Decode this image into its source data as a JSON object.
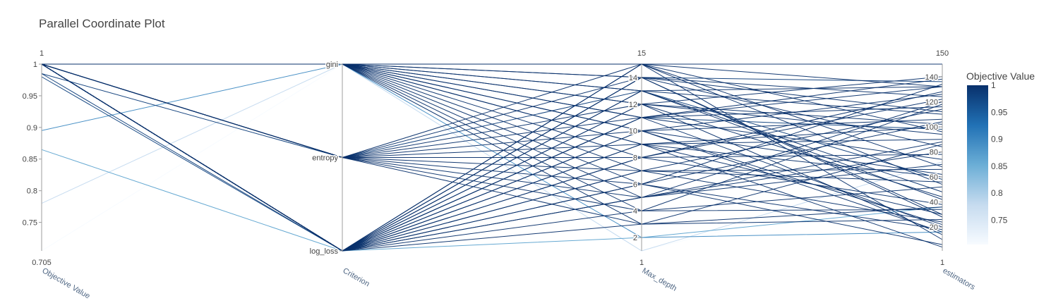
{
  "chart_data": {
    "type": "parallel_coordinates",
    "title": "Parallel Coordinate Plot",
    "color_scale": [
      "#f7fbff",
      "#c6dbef",
      "#6baed6",
      "#2171b5",
      "#08306b"
    ],
    "line_color_by": "Objective Value",
    "axes": [
      {
        "key": "objective",
        "label": "Objective Value",
        "range": [
          0.705,
          1
        ],
        "range_labels": [
          "0.705",
          "1"
        ],
        "ticks": [
          0.75,
          0.8,
          0.85,
          0.9,
          0.95,
          1
        ],
        "tick_labels": [
          "0.75",
          "0.8",
          "0.85",
          "0.9",
          "0.95",
          "1"
        ]
      },
      {
        "key": "criterion",
        "label": "Criterion",
        "categorical": true,
        "categories": [
          "log_loss",
          "entropy",
          "gini"
        ],
        "tick_labels": [
          "log_loss",
          "entropy",
          "gini"
        ]
      },
      {
        "key": "max_depth",
        "label": "Max_depth",
        "range": [
          1,
          15
        ],
        "range_labels": [
          "1",
          "15"
        ],
        "ticks": [
          2,
          4,
          6,
          8,
          10,
          12,
          14
        ],
        "tick_labels": [
          "2",
          "4",
          "6",
          "8",
          "10",
          "12",
          "14"
        ]
      },
      {
        "key": "estimators",
        "label": "estimators",
        "range": [
          1,
          150
        ],
        "range_labels": [
          "1",
          "150"
        ],
        "ticks": [
          20,
          40,
          60,
          80,
          100,
          120,
          140
        ],
        "tick_labels": [
          "20",
          "40",
          "60",
          "80",
          "100",
          "120",
          "140"
        ]
      }
    ],
    "trials": [
      [
        1,
        "gini",
        15,
        150
      ],
      [
        1,
        "gini",
        15,
        132
      ],
      [
        1,
        "gini",
        15,
        96
      ],
      [
        1,
        "gini",
        14,
        112
      ],
      [
        1,
        "gini",
        14,
        124
      ],
      [
        1,
        "gini",
        13,
        42
      ],
      [
        1,
        "gini",
        13,
        132
      ],
      [
        1,
        "gini",
        12,
        102
      ],
      [
        1,
        "gini",
        12,
        140
      ],
      [
        1,
        "gini",
        11,
        20
      ],
      [
        1,
        "gini",
        11,
        116
      ],
      [
        1,
        "gini",
        10,
        62
      ],
      [
        1,
        "gini",
        10,
        126
      ],
      [
        1,
        "gini",
        9,
        30
      ],
      [
        1,
        "gini",
        9,
        90
      ],
      [
        1,
        "gini",
        8,
        78
      ],
      [
        1,
        "gini",
        7,
        24
      ],
      [
        1,
        "gini",
        6,
        104
      ],
      [
        1,
        "gini",
        5,
        70
      ],
      [
        1,
        "gini",
        4,
        52
      ],
      [
        1,
        "gini",
        3,
        86
      ],
      [
        1,
        "entropy",
        15,
        68
      ],
      [
        1,
        "entropy",
        14,
        30
      ],
      [
        1,
        "entropy",
        12,
        44
      ],
      [
        1,
        "entropy",
        11,
        132
      ],
      [
        1,
        "entropy",
        10,
        16
      ],
      [
        1,
        "entropy",
        9,
        100
      ],
      [
        1,
        "entropy",
        8,
        122
      ],
      [
        1,
        "entropy",
        7,
        56
      ],
      [
        1,
        "entropy",
        6,
        6
      ],
      [
        1,
        "entropy",
        5,
        88
      ],
      [
        1,
        "entropy",
        4,
        118
      ],
      [
        1,
        "entropy",
        3,
        36
      ],
      [
        1,
        "log_loss",
        15,
        54
      ],
      [
        1,
        "log_loss",
        15,
        10
      ],
      [
        1,
        "log_loss",
        14,
        84
      ],
      [
        1,
        "log_loss",
        14,
        28
      ],
      [
        1,
        "log_loss",
        13,
        110
      ],
      [
        1,
        "log_loss",
        13,
        48
      ],
      [
        1,
        "log_loss",
        12,
        14
      ],
      [
        1,
        "log_loss",
        12,
        94
      ],
      [
        1,
        "log_loss",
        11,
        138
      ],
      [
        1,
        "log_loss",
        11,
        74
      ],
      [
        1,
        "log_loss",
        10,
        22
      ],
      [
        1,
        "log_loss",
        10,
        106
      ],
      [
        1,
        "log_loss",
        9,
        60
      ],
      [
        1,
        "log_loss",
        9,
        4
      ],
      [
        1,
        "log_loss",
        8,
        128
      ],
      [
        1,
        "log_loss",
        8,
        38
      ],
      [
        1,
        "log_loss",
        7,
        114
      ],
      [
        1,
        "log_loss",
        7,
        66
      ],
      [
        1,
        "log_loss",
        6,
        134
      ],
      [
        1,
        "log_loss",
        6,
        18
      ],
      [
        1,
        "log_loss",
        5,
        120
      ],
      [
        1,
        "log_loss",
        5,
        80
      ],
      [
        1,
        "log_loss",
        4,
        34
      ],
      [
        1,
        "log_loss",
        3,
        26
      ],
      [
        0.985,
        "log_loss",
        14,
        136
      ],
      [
        0.985,
        "entropy",
        13,
        58
      ],
      [
        0.98,
        "log_loss",
        11,
        98
      ],
      [
        0.895,
        "gini",
        2,
        16
      ],
      [
        0.865,
        "log_loss",
        2,
        36
      ],
      [
        0.78,
        "gini",
        1,
        72
      ],
      [
        0.705,
        "gini",
        1,
        60
      ]
    ],
    "colorbar": {
      "title": "Objective Value",
      "range": [
        0.705,
        1
      ],
      "ticks": [
        0.75,
        0.8,
        0.85,
        0.9,
        0.95,
        1
      ],
      "tick_labels": [
        "0.75",
        "0.8",
        "0.85",
        "0.9",
        "0.95",
        "1"
      ]
    }
  }
}
